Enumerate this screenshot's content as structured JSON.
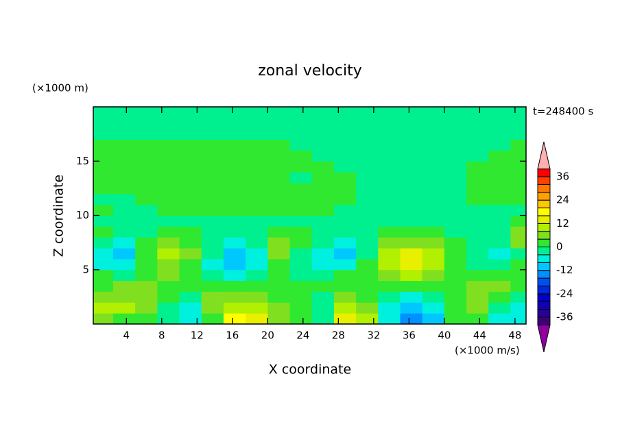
{
  "chart_data": {
    "type": "contour",
    "title": "zonal velocity",
    "subtitle": "t=248400 s",
    "x_label": "X coordinate",
    "y_label": "Z coordinate",
    "x_units": "(×1000 m/s)",
    "y_units": "(×1000 m)",
    "xlim": [
      0.25,
      49.25
    ],
    "ylim": [
      0,
      20
    ],
    "xticks": [
      4,
      8,
      12,
      16,
      20,
      24,
      28,
      32,
      36,
      40,
      44,
      48
    ],
    "yticks": [
      5,
      10,
      15
    ],
    "x": [
      1.25,
      3.75,
      6.25,
      8.75,
      11.25,
      13.75,
      16.25,
      18.75,
      21.25,
      23.75,
      26.25,
      28.75,
      31.25,
      33.75,
      36.25,
      38.75,
      41.25,
      43.75,
      46.25,
      48.75
    ],
    "z": [
      0.5,
      1.5,
      2.5,
      3.5,
      4.5,
      5.5,
      6.5,
      7.5,
      8.5,
      9.5,
      10.5,
      11.5,
      12.5,
      13.5,
      14.5,
      15.5,
      16.5,
      17.5,
      18.5,
      19.5
    ],
    "values": [
      [
        6,
        3,
        2,
        -2,
        -6,
        2,
        16,
        14,
        6,
        2,
        -2,
        14,
        10,
        -6,
        -16,
        -10,
        2,
        2,
        -6,
        -6
      ],
      [
        10,
        10,
        6,
        -2,
        -6,
        6,
        10,
        10,
        6,
        2,
        -2,
        10,
        6,
        -6,
        -10,
        -6,
        2,
        6,
        -2,
        -6
      ],
      [
        6,
        6,
        6,
        2,
        -2,
        6,
        6,
        6,
        2,
        2,
        -2,
        6,
        2,
        -2,
        -6,
        -2,
        2,
        6,
        2,
        -2
      ],
      [
        2,
        6,
        6,
        2,
        2,
        2,
        2,
        2,
        2,
        2,
        2,
        2,
        2,
        2,
        2,
        2,
        2,
        6,
        6,
        2
      ],
      [
        2,
        -2,
        2,
        6,
        2,
        -2,
        -6,
        -2,
        2,
        -2,
        -2,
        2,
        2,
        6,
        10,
        6,
        2,
        2,
        2,
        2
      ],
      [
        -6,
        -6,
        2,
        6,
        2,
        -6,
        -10,
        -6,
        2,
        -2,
        -6,
        -6,
        2,
        10,
        14,
        10,
        2,
        -2,
        -2,
        2
      ],
      [
        -6,
        -10,
        2,
        10,
        6,
        -2,
        -10,
        -6,
        6,
        -2,
        -6,
        -10,
        -2,
        10,
        14,
        10,
        2,
        -2,
        -6,
        -2
      ],
      [
        -2,
        -6,
        2,
        6,
        2,
        -2,
        -6,
        -2,
        6,
        2,
        -2,
        -6,
        -2,
        6,
        6,
        6,
        2,
        -2,
        -2,
        6
      ],
      [
        2,
        -2,
        -2,
        2,
        2,
        -2,
        -2,
        -2,
        2,
        2,
        -2,
        -2,
        -2,
        2,
        2,
        2,
        -2,
        -2,
        -2,
        6
      ],
      [
        -2,
        -2,
        -2,
        -2,
        -2,
        -2,
        -2,
        -2,
        -2,
        -2,
        -2,
        -2,
        -2,
        -2,
        -2,
        -2,
        -2,
        -2,
        -2,
        2
      ],
      [
        2,
        -2,
        -2,
        2,
        2,
        2,
        2,
        2,
        2,
        2,
        2,
        -2,
        -2,
        -2,
        -2,
        -2,
        -2,
        -2,
        -2,
        -2
      ],
      [
        -2,
        -2,
        2,
        2,
        2,
        2,
        2,
        2,
        2,
        2,
        2,
        2,
        -2,
        -2,
        -2,
        -2,
        -2,
        2,
        2,
        2
      ],
      [
        2,
        2,
        2,
        2,
        2,
        2,
        2,
        2,
        2,
        2,
        2,
        2,
        -2,
        -2,
        -2,
        -2,
        -2,
        2,
        2,
        2
      ],
      [
        2,
        2,
        2,
        2,
        2,
        2,
        2,
        2,
        2,
        -2,
        2,
        2,
        -2,
        -2,
        -2,
        -2,
        -2,
        2,
        2,
        2
      ],
      [
        2,
        2,
        2,
        2,
        2,
        2,
        2,
        2,
        2,
        2,
        2,
        -2,
        -2,
        -2,
        -2,
        -2,
        -2,
        2,
        2,
        2
      ],
      [
        2,
        2,
        2,
        2,
        2,
        2,
        2,
        2,
        2,
        2,
        -2,
        -2,
        -2,
        -2,
        -2,
        -2,
        -2,
        -2,
        2,
        2
      ],
      [
        2,
        2,
        2,
        2,
        2,
        2,
        2,
        2,
        2,
        -2,
        -2,
        -2,
        -2,
        -2,
        -2,
        -2,
        -2,
        -2,
        -2,
        2
      ],
      [
        -2,
        -2,
        -2,
        -2,
        -2,
        -2,
        -2,
        -2,
        -2,
        -2,
        -2,
        -2,
        -2,
        -2,
        -2,
        -2,
        -2,
        -2,
        -2,
        -2
      ],
      [
        -2,
        -2,
        -2,
        -2,
        -2,
        -2,
        -2,
        -2,
        -2,
        -2,
        -2,
        -2,
        -2,
        -2,
        -2,
        -2,
        -2,
        -2,
        -2,
        -2
      ],
      [
        -2,
        -2,
        -2,
        -2,
        -2,
        -2,
        -2,
        -2,
        -2,
        -2,
        -2,
        -2,
        -2,
        -2,
        -2,
        -2,
        -2,
        -2,
        -2,
        -2
      ]
    ],
    "levels": [
      -40,
      -36,
      -32,
      -28,
      -24,
      -20,
      -16,
      -12,
      -8,
      -4,
      0,
      4,
      8,
      12,
      16,
      20,
      24,
      28,
      32,
      36,
      40
    ],
    "colors": [
      "#3c0078",
      "#280096",
      "#1400b4",
      "#0000c8",
      "#0028dc",
      "#0050f0",
      "#0090ff",
      "#00c8ff",
      "#00f0e0",
      "#00f090",
      "#30e830",
      "#80e020",
      "#b0f000",
      "#e8f000",
      "#ffff00",
      "#ffc800",
      "#ffa000",
      "#ff7800",
      "#ff4000",
      "#ff0000"
    ],
    "under_color": "#9000a0",
    "over_color": "#ffb0b0",
    "colorbar_ticks": [
      -36,
      -24,
      -12,
      0,
      12,
      24,
      36
    ]
  }
}
